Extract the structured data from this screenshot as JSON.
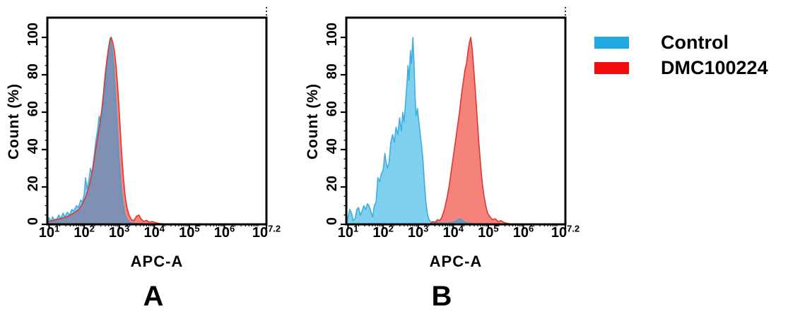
{
  "legend": {
    "position": "right",
    "items": [
      {
        "label": "Control",
        "color": "#21A9E1"
      },
      {
        "label": "DMC100224",
        "color": "#F40B0E"
      }
    ]
  },
  "chart_data": [
    {
      "type": "area",
      "panel_label": "A",
      "xlabel": "APC-A",
      "ylabel": "Count (%)",
      "x_scale": "log10",
      "x_domain_log": [
        0.95,
        7.2
      ],
      "x_tick_exponents": [
        1,
        2,
        3,
        4,
        5,
        6,
        7.2
      ],
      "y_ticks": [
        0,
        20,
        40,
        60,
        80,
        100
      ],
      "ylim": [
        0,
        110
      ],
      "grid": false,
      "overlap_fill": "#8090B4",
      "series": [
        {
          "name": "Control",
          "fill": "#7FD0EF",
          "line": "#2AA4D8",
          "points_log10x_pct": [
            [
              0.96,
              2
            ],
            [
              1.0,
              3.5
            ],
            [
              1.05,
              1.5
            ],
            [
              1.1,
              4
            ],
            [
              1.15,
              2.5
            ],
            [
              1.22,
              3
            ],
            [
              1.28,
              5
            ],
            [
              1.33,
              3
            ],
            [
              1.4,
              6
            ],
            [
              1.45,
              4
            ],
            [
              1.52,
              6.5
            ],
            [
              1.58,
              5
            ],
            [
              1.65,
              8
            ],
            [
              1.7,
              7
            ],
            [
              1.78,
              10
            ],
            [
              1.84,
              9
            ],
            [
              1.9,
              13
            ],
            [
              1.95,
              12
            ],
            [
              2.0,
              16
            ],
            [
              2.04,
              25
            ],
            [
              2.08,
              19
            ],
            [
              2.13,
              23
            ],
            [
              2.18,
              30
            ],
            [
              2.22,
              27
            ],
            [
              2.28,
              36
            ],
            [
              2.33,
              44
            ],
            [
              2.38,
              50
            ],
            [
              2.43,
              58
            ],
            [
              2.47,
              53
            ],
            [
              2.52,
              60
            ],
            [
              2.57,
              68
            ],
            [
              2.62,
              78
            ],
            [
              2.67,
              90
            ],
            [
              2.72,
              97
            ],
            [
              2.75,
              100
            ],
            [
              2.8,
              93
            ],
            [
              2.85,
              83
            ],
            [
              2.9,
              66
            ],
            [
              2.95,
              49
            ],
            [
              3.0,
              33
            ],
            [
              3.05,
              20
            ],
            [
              3.1,
              12
            ],
            [
              3.15,
              6
            ],
            [
              3.22,
              2.5
            ],
            [
              3.3,
              1
            ],
            [
              3.45,
              0.5
            ],
            [
              3.7,
              0.3
            ],
            [
              4.0,
              0.2
            ],
            [
              4.3,
              0
            ]
          ]
        },
        {
          "name": "DMC100224",
          "fill": "#F5827B",
          "line": "#DC3831",
          "points_log10x_pct": [
            [
              0.96,
              1.5
            ],
            [
              1.1,
              2
            ],
            [
              1.3,
              3
            ],
            [
              1.5,
              4
            ],
            [
              1.7,
              6
            ],
            [
              1.85,
              8
            ],
            [
              1.95,
              11
            ],
            [
              2.05,
              15
            ],
            [
              2.15,
              21
            ],
            [
              2.25,
              30
            ],
            [
              2.33,
              40
            ],
            [
              2.4,
              48
            ],
            [
              2.45,
              54
            ],
            [
              2.5,
              61
            ],
            [
              2.55,
              70
            ],
            [
              2.6,
              80
            ],
            [
              2.65,
              88
            ],
            [
              2.7,
              95
            ],
            [
              2.74,
              99
            ],
            [
              2.77,
              100
            ],
            [
              2.82,
              97
            ],
            [
              2.87,
              92
            ],
            [
              2.92,
              83
            ],
            [
              2.97,
              70
            ],
            [
              3.02,
              54
            ],
            [
              3.07,
              38
            ],
            [
              3.12,
              25
            ],
            [
              3.17,
              15
            ],
            [
              3.22,
              9
            ],
            [
              3.28,
              5
            ],
            [
              3.35,
              2.5
            ],
            [
              3.42,
              2
            ],
            [
              3.5,
              4.5
            ],
            [
              3.56,
              5
            ],
            [
              3.62,
              3
            ],
            [
              3.7,
              1.5
            ],
            [
              3.78,
              2.2
            ],
            [
              3.85,
              1.2
            ],
            [
              3.95,
              1.5
            ],
            [
              4.05,
              0.8
            ],
            [
              4.15,
              0.5
            ],
            [
              4.3,
              0
            ]
          ]
        }
      ]
    },
    {
      "type": "area",
      "panel_label": "B",
      "xlabel": "APC-A",
      "ylabel": "Count (%)",
      "x_scale": "log10",
      "x_domain_log": [
        0.95,
        7.2
      ],
      "x_tick_exponents": [
        1,
        2,
        3,
        4,
        5,
        6,
        7.2
      ],
      "y_ticks": [
        0,
        20,
        40,
        60,
        80,
        100
      ],
      "ylim": [
        0,
        110
      ],
      "grid": false,
      "overlap_fill": "#8090B4",
      "series": [
        {
          "name": "Control",
          "fill": "#7FD0EF",
          "line": "#2AA4D8",
          "points_log10x_pct": [
            [
              0.96,
              1
            ],
            [
              1.0,
              4
            ],
            [
              1.05,
              8
            ],
            [
              1.1,
              6
            ],
            [
              1.15,
              2
            ],
            [
              1.2,
              3
            ],
            [
              1.25,
              8
            ],
            [
              1.3,
              9
            ],
            [
              1.35,
              5
            ],
            [
              1.4,
              7
            ],
            [
              1.45,
              10
            ],
            [
              1.5,
              8
            ],
            [
              1.55,
              11
            ],
            [
              1.6,
              10
            ],
            [
              1.65,
              7
            ],
            [
              1.7,
              4
            ],
            [
              1.75,
              10
            ],
            [
              1.8,
              12
            ],
            [
              1.85,
              25
            ],
            [
              1.9,
              23
            ],
            [
              1.95,
              27
            ],
            [
              2.0,
              29
            ],
            [
              2.05,
              38
            ],
            [
              2.08,
              34
            ],
            [
              2.12,
              30
            ],
            [
              2.17,
              33
            ],
            [
              2.22,
              44
            ],
            [
              2.27,
              48
            ],
            [
              2.32,
              44
            ],
            [
              2.37,
              52
            ],
            [
              2.42,
              48
            ],
            [
              2.47,
              57
            ],
            [
              2.52,
              50
            ],
            [
              2.56,
              60
            ],
            [
              2.6,
              55
            ],
            [
              2.64,
              65
            ],
            [
              2.68,
              75
            ],
            [
              2.71,
              85
            ],
            [
              2.74,
              77
            ],
            [
              2.78,
              93
            ],
            [
              2.81,
              86
            ],
            [
              2.85,
              100
            ],
            [
              2.88,
              88
            ],
            [
              2.91,
              70
            ],
            [
              2.94,
              58
            ],
            [
              2.98,
              62
            ],
            [
              3.02,
              55
            ],
            [
              3.06,
              48
            ],
            [
              3.1,
              42
            ],
            [
              3.14,
              34
            ],
            [
              3.18,
              22
            ],
            [
              3.22,
              12
            ],
            [
              3.27,
              5
            ],
            [
              3.32,
              2
            ],
            [
              3.4,
              1
            ],
            [
              3.5,
              1.5
            ],
            [
              3.6,
              0.8
            ],
            [
              3.8,
              0.6
            ],
            [
              3.95,
              1
            ],
            [
              4.05,
              1.5
            ],
            [
              4.2,
              3
            ],
            [
              4.3,
              1.5
            ],
            [
              4.4,
              0.8
            ],
            [
              4.6,
              0.4
            ],
            [
              5.0,
              0.2
            ],
            [
              5.2,
              0
            ]
          ]
        },
        {
          "name": "DMC100224",
          "fill": "#F5827B",
          "line": "#DC3831",
          "points_log10x_pct": [
            [
              3.35,
              0.5
            ],
            [
              3.42,
              1.5
            ],
            [
              3.48,
              1
            ],
            [
              3.55,
              2.5
            ],
            [
              3.62,
              2
            ],
            [
              3.68,
              4
            ],
            [
              3.75,
              8
            ],
            [
              3.82,
              14
            ],
            [
              3.88,
              20
            ],
            [
              3.94,
              28
            ],
            [
              4.0,
              36
            ],
            [
              4.06,
              44
            ],
            [
              4.12,
              52
            ],
            [
              4.18,
              60
            ],
            [
              4.24,
              70
            ],
            [
              4.3,
              78
            ],
            [
              4.34,
              83
            ],
            [
              4.38,
              86
            ],
            [
              4.42,
              92
            ],
            [
              4.46,
              97
            ],
            [
              4.5,
              100
            ],
            [
              4.54,
              94
            ],
            [
              4.58,
              85
            ],
            [
              4.63,
              72
            ],
            [
              4.68,
              58
            ],
            [
              4.73,
              44
            ],
            [
              4.78,
              32
            ],
            [
              4.83,
              22
            ],
            [
              4.88,
              15
            ],
            [
              4.93,
              10
            ],
            [
              4.98,
              6
            ],
            [
              5.05,
              4
            ],
            [
              5.12,
              2.5
            ],
            [
              5.2,
              3
            ],
            [
              5.28,
              1.5
            ],
            [
              5.36,
              2
            ],
            [
              5.45,
              1
            ],
            [
              5.55,
              0.5
            ],
            [
              5.7,
              0
            ]
          ]
        }
      ]
    }
  ]
}
